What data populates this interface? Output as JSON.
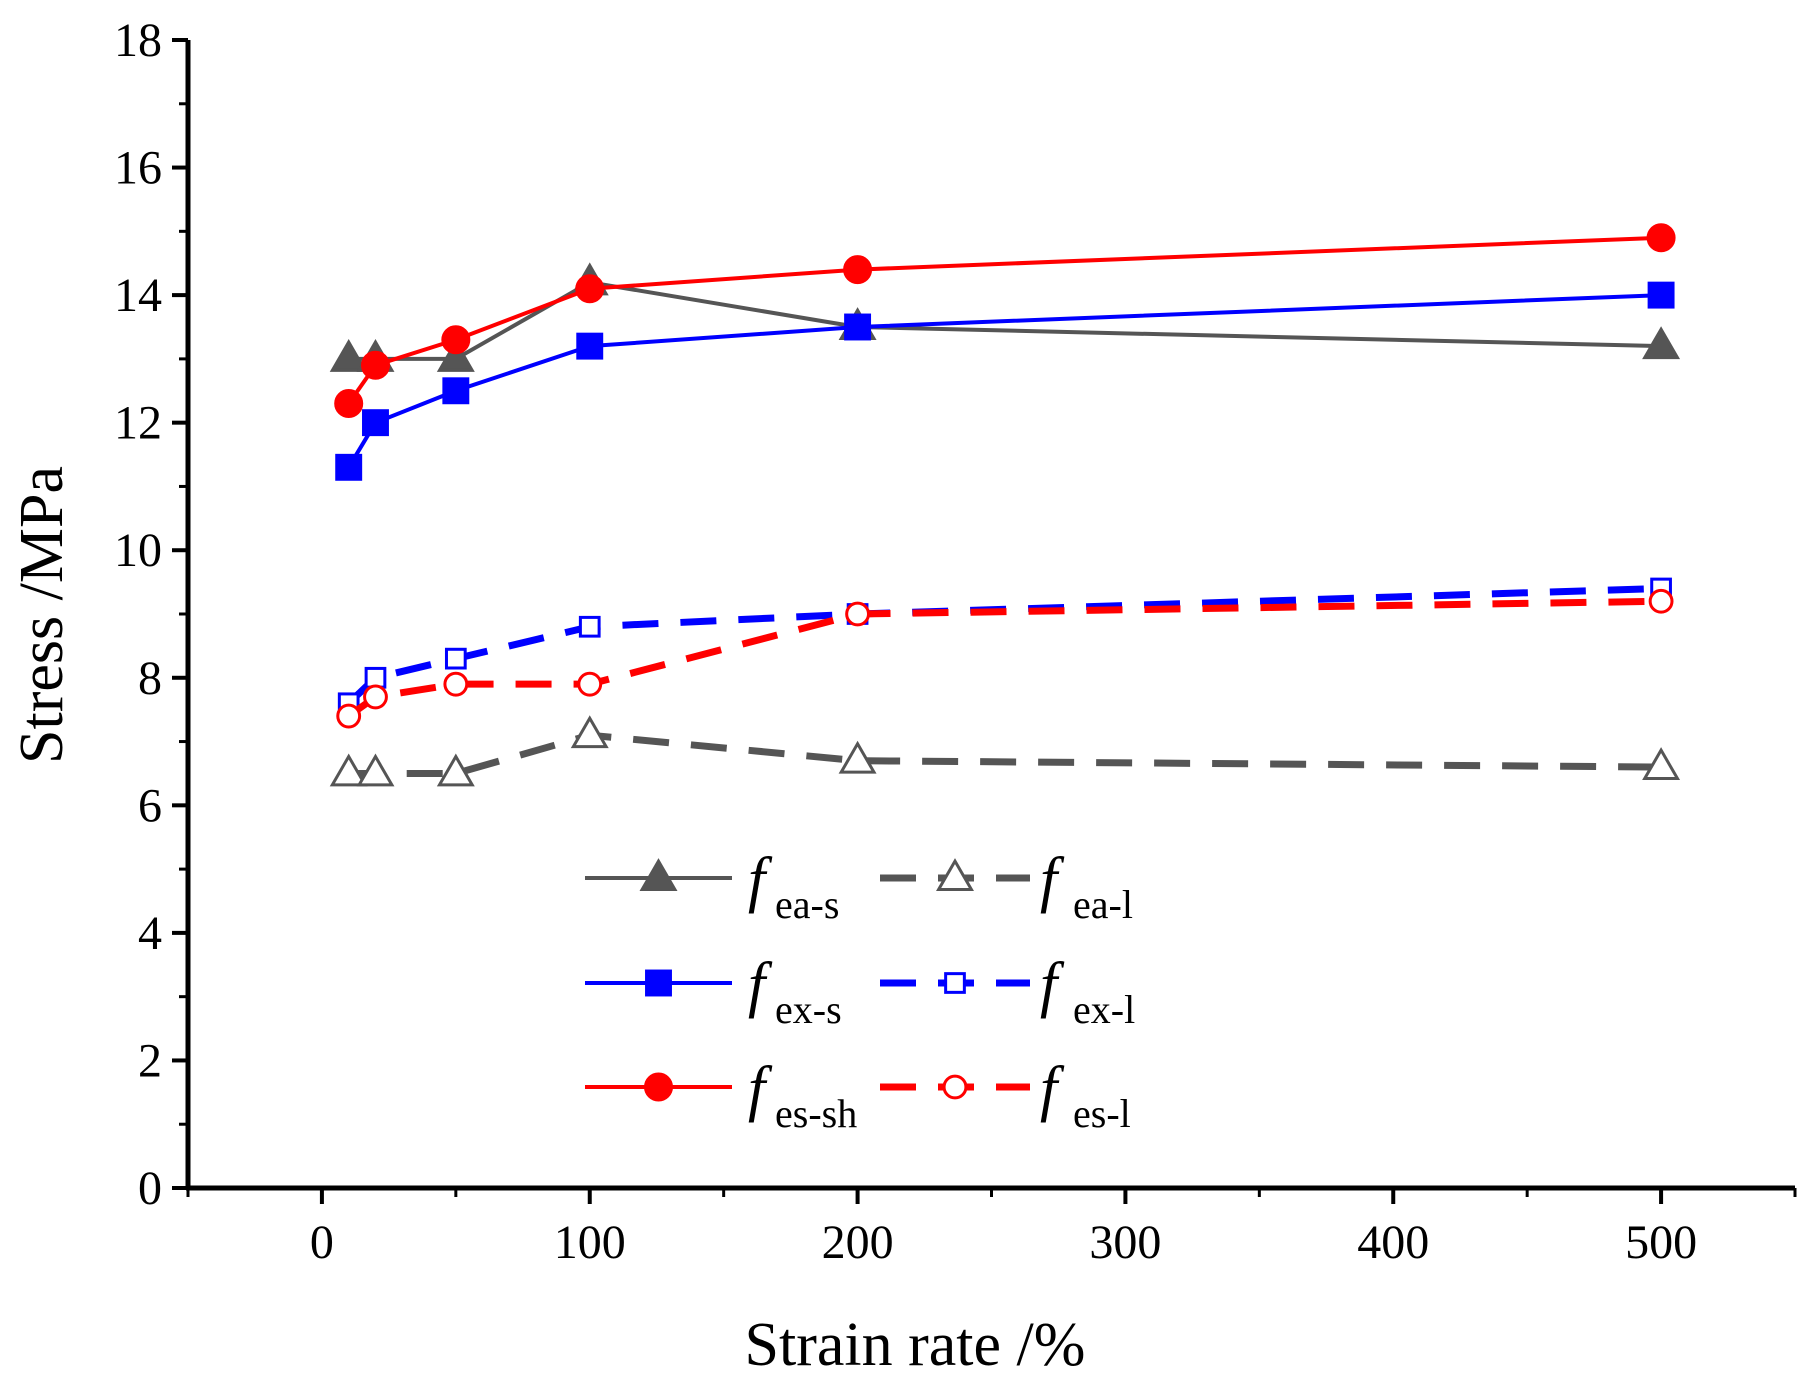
{
  "chart_data": {
    "type": "line",
    "title": "",
    "xlabel": "Strain rate /%",
    "ylabel": "Stress /MPa",
    "xlim": [
      -50,
      550
    ],
    "ylim": [
      0,
      18
    ],
    "xticks": [
      0,
      100,
      200,
      300,
      400,
      500
    ],
    "yticks": [
      0,
      2,
      4,
      6,
      8,
      10,
      12,
      14,
      16,
      18
    ],
    "x_minor_step": 50,
    "y_minor_step": 1,
    "legend_position": "lower-center",
    "series": [
      {
        "name": "f_ea-s",
        "label_main": "f",
        "label_sub": "ea-s",
        "color": "#555555",
        "style": "solid",
        "marker": "triangle",
        "filled": true,
        "x": [
          10,
          20,
          50,
          100,
          200,
          500
        ],
        "values": [
          13.0,
          13.0,
          13.0,
          14.2,
          13.5,
          13.2
        ]
      },
      {
        "name": "f_ea-l",
        "label_main": "f",
        "label_sub": "ea-l",
        "color": "#555555",
        "style": "dashed",
        "marker": "triangle",
        "filled": false,
        "x": [
          10,
          20,
          50,
          100,
          200,
          500
        ],
        "values": [
          6.5,
          6.5,
          6.5,
          7.1,
          6.7,
          6.6
        ]
      },
      {
        "name": "f_ex-s",
        "label_main": "f",
        "label_sub": "ex-s",
        "color": "#0000ff",
        "style": "solid",
        "marker": "square",
        "filled": true,
        "x": [
          10,
          20,
          50,
          100,
          200,
          500
        ],
        "values": [
          11.3,
          12.0,
          12.5,
          13.2,
          13.5,
          14.0
        ]
      },
      {
        "name": "f_ex-l",
        "label_main": "f",
        "label_sub": "ex-l",
        "color": "#0000ff",
        "style": "dashed",
        "marker": "square",
        "filled": false,
        "x": [
          10,
          20,
          50,
          100,
          200,
          500
        ],
        "values": [
          7.6,
          8.0,
          8.3,
          8.8,
          9.0,
          9.4
        ]
      },
      {
        "name": "f_es-sh",
        "label_main": "f",
        "label_sub": "es-sh",
        "color": "#ff0000",
        "style": "solid",
        "marker": "circle",
        "filled": true,
        "x": [
          10,
          20,
          50,
          100,
          200,
          500
        ],
        "values": [
          12.3,
          12.9,
          13.3,
          14.1,
          14.4,
          14.9
        ]
      },
      {
        "name": "f_es-l",
        "label_main": "f",
        "label_sub": "es-l",
        "color": "#ff0000",
        "style": "dashed",
        "marker": "circle",
        "filled": false,
        "x": [
          10,
          20,
          50,
          100,
          200,
          500
        ],
        "values": [
          7.4,
          7.7,
          7.9,
          7.9,
          9.0,
          9.2
        ]
      }
    ]
  }
}
